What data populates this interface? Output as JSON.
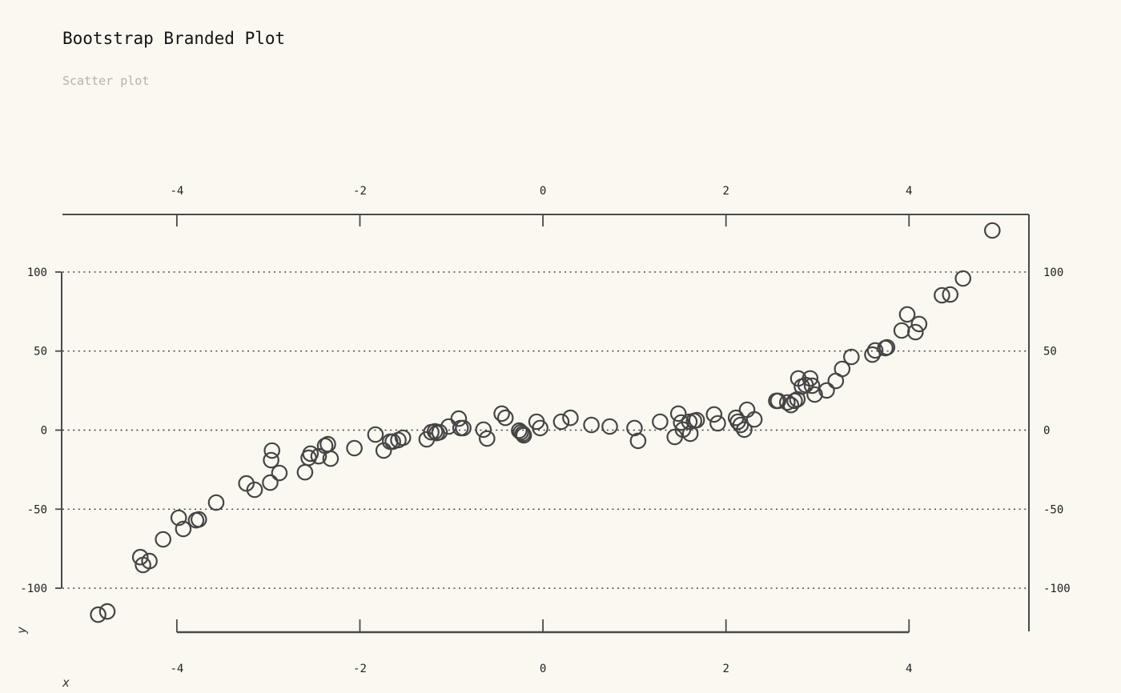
{
  "header": {
    "title": "Bootstrap Branded Plot",
    "subtitle": "Scatter plot"
  },
  "colors": {
    "background": "#faf8f1",
    "title_text": "#141414",
    "subtitle_text": "#b3b3ab",
    "spine": "#4a4a4a",
    "tick_text": "#222222",
    "gridline": "#3b3b3b",
    "marker_stroke": "#454545"
  },
  "chart_data": {
    "type": "scatter",
    "title": "Bootstrap Branded Plot",
    "subtitle": "Scatter plot",
    "xlabel": "x",
    "ylabel": "y",
    "xlim": [
      -5.25,
      5.31
    ],
    "ylim": [
      -127.8,
      136.4
    ],
    "x_ticks": [
      -4,
      -2,
      0,
      2,
      4
    ],
    "x_tick_labels": [
      "-4",
      "-2",
      "0",
      "2",
      "4"
    ],
    "y_ticks": [
      100,
      50,
      0,
      -50,
      -100
    ],
    "y_tick_labels": [
      "100",
      "50",
      "0",
      "-50",
      "-100"
    ],
    "grid": "horizontal dotted lines at y ticks",
    "legend": "none",
    "marker": "open-circle",
    "n_points": 101,
    "points": [
      [
        -4.86,
        -116.7
      ],
      [
        -4.76,
        -114.7
      ],
      [
        -4.4,
        -80.3
      ],
      [
        -4.37,
        -85.3
      ],
      [
        -4.3,
        -82.8
      ],
      [
        -4.15,
        -69.1
      ],
      [
        -3.98,
        -55.4
      ],
      [
        -3.93,
        -62.5
      ],
      [
        -3.79,
        -57.0
      ],
      [
        -3.76,
        -56.5
      ],
      [
        -3.57,
        -45.8
      ],
      [
        -3.24,
        -33.7
      ],
      [
        -3.15,
        -37.7
      ],
      [
        -2.98,
        -33.2
      ],
      [
        -2.97,
        -19.0
      ],
      [
        -2.96,
        -12.9
      ],
      [
        -2.88,
        -27.1
      ],
      [
        -2.6,
        -26.6
      ],
      [
        -2.56,
        -17.5
      ],
      [
        -2.54,
        -14.9
      ],
      [
        -2.45,
        -16.5
      ],
      [
        -2.38,
        -9.9
      ],
      [
        -2.35,
        -8.9
      ],
      [
        -2.32,
        -18.0
      ],
      [
        -2.06,
        -11.4
      ],
      [
        -1.83,
        -2.8
      ],
      [
        -1.74,
        -12.9
      ],
      [
        -1.67,
        -7.3
      ],
      [
        -1.64,
        -7.3
      ],
      [
        -1.58,
        -6.3
      ],
      [
        -1.53,
        -4.8
      ],
      [
        -1.27,
        -5.8
      ],
      [
        -1.22,
        -1.3
      ],
      [
        -1.18,
        -0.8
      ],
      [
        -1.16,
        -1.8
      ],
      [
        -1.13,
        -1.3
      ],
      [
        -1.03,
        2.3
      ],
      [
        -0.92,
        7.3
      ],
      [
        -0.9,
        1.3
      ],
      [
        -0.87,
        1.3
      ],
      [
        -0.65,
        0.3
      ],
      [
        -0.61,
        -5.3
      ],
      [
        -0.45,
        10.4
      ],
      [
        -0.41,
        7.8
      ],
      [
        -0.26,
        -0.3
      ],
      [
        -0.24,
        -1.3
      ],
      [
        -0.22,
        -2.3
      ],
      [
        -0.21,
        -3.3
      ],
      [
        -0.07,
        5.3
      ],
      [
        -0.03,
        1.3
      ],
      [
        0.2,
        5.3
      ],
      [
        0.3,
        7.8
      ],
      [
        0.53,
        3.3
      ],
      [
        0.73,
        2.3
      ],
      [
        1.0,
        1.3
      ],
      [
        1.04,
        -6.8
      ],
      [
        1.28,
        5.3
      ],
      [
        1.44,
        -4.3
      ],
      [
        1.48,
        10.4
      ],
      [
        1.51,
        4.8
      ],
      [
        1.53,
        0.3
      ],
      [
        1.6,
        5.3
      ],
      [
        1.61,
        -2.3
      ],
      [
        1.65,
        5.8
      ],
      [
        1.68,
        6.3
      ],
      [
        1.87,
        9.9
      ],
      [
        1.91,
        4.3
      ],
      [
        2.11,
        7.8
      ],
      [
        2.13,
        5.3
      ],
      [
        2.16,
        3.3
      ],
      [
        2.2,
        0.3
      ],
      [
        2.23,
        12.9
      ],
      [
        2.31,
        6.8
      ],
      [
        2.55,
        18.5
      ],
      [
        2.57,
        18.5
      ],
      [
        2.67,
        17.5
      ],
      [
        2.71,
        15.9
      ],
      [
        2.75,
        18.5
      ],
      [
        2.78,
        19.5
      ],
      [
        2.79,
        32.7
      ],
      [
        2.83,
        27.6
      ],
      [
        2.87,
        28.6
      ],
      [
        2.92,
        32.7
      ],
      [
        2.94,
        28.1
      ],
      [
        2.97,
        22.5
      ],
      [
        3.1,
        25.1
      ],
      [
        3.2,
        31.1
      ],
      [
        3.27,
        38.7
      ],
      [
        3.37,
        46.3
      ],
      [
        3.6,
        47.8
      ],
      [
        3.63,
        50.4
      ],
      [
        3.74,
        51.9
      ],
      [
        3.76,
        52.4
      ],
      [
        3.92,
        63.0
      ],
      [
        3.98,
        73.2
      ],
      [
        4.07,
        62.0
      ],
      [
        4.11,
        67.1
      ],
      [
        4.36,
        85.3
      ],
      [
        4.45,
        85.8
      ],
      [
        4.59,
        95.9
      ],
      [
        4.91,
        126.3
      ]
    ]
  }
}
